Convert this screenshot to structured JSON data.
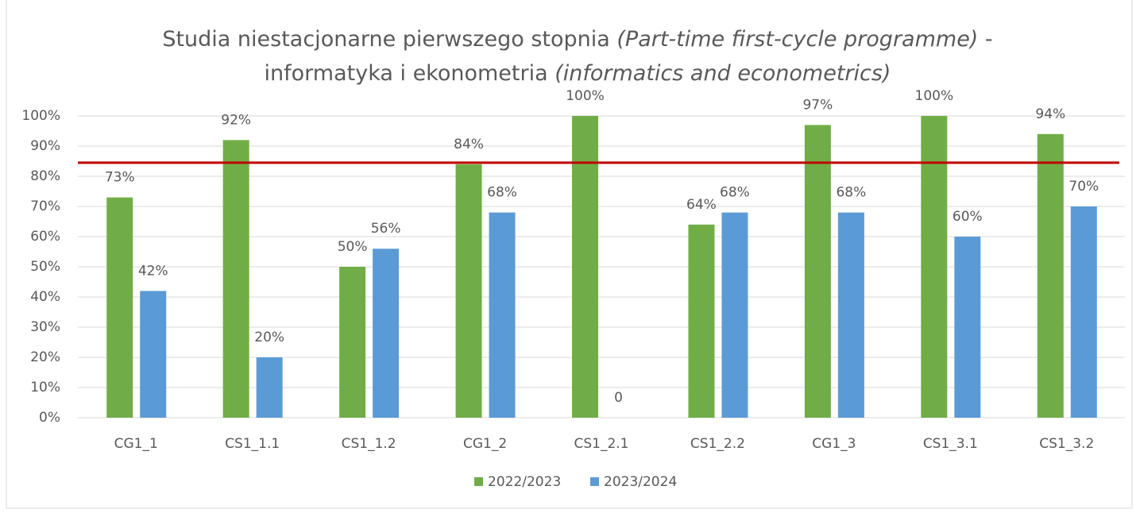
{
  "chart_data": {
    "type": "bar",
    "title": [
      [
        {
          "text": "Studia niestacjonarne pierwszego stopnia ",
          "italic": false
        },
        {
          "text": "(Part-time first-cycle programme)",
          "italic": true
        },
        {
          "text": " -",
          "italic": false
        }
      ],
      [
        {
          "text": "informatyka i ekonometria ",
          "italic": false
        },
        {
          "text": "(informatics and econometrics)",
          "italic": true
        }
      ]
    ],
    "categories": [
      "CG1_1",
      "CS1_1.1",
      "CS1_1.2",
      "CG1_2",
      "CS1_2.1",
      "CS1_2.2",
      "CG1_3",
      "CS1_3.1",
      "CS1_3.2"
    ],
    "series": [
      {
        "name": "2022/2023",
        "color": "#70ad47",
        "values": [
          73,
          92,
          50,
          84,
          100,
          64,
          97,
          100,
          94
        ],
        "value_labels": [
          "73%",
          "92%",
          "50%",
          "84%",
          "100%",
          "64%",
          "97%",
          "100%",
          "94%"
        ]
      },
      {
        "name": "2023/2024",
        "color": "#5b9bd5",
        "values": [
          42,
          20,
          56,
          68,
          0,
          68,
          68,
          60,
          70
        ],
        "value_labels": [
          "42%",
          "20%",
          "56%",
          "68%",
          "0",
          "68%",
          "68%",
          "60%",
          "70%"
        ]
      }
    ],
    "ylim": [
      0,
      100
    ],
    "yticks": [
      {
        "value": 0,
        "label": "0%"
      },
      {
        "value": 10,
        "label": "10%"
      },
      {
        "value": 20,
        "label": "20%"
      },
      {
        "value": 30,
        "label": "30%"
      },
      {
        "value": 40,
        "label": "40%"
      },
      {
        "value": 50,
        "label": "50%"
      },
      {
        "value": 60,
        "label": "60%"
      },
      {
        "value": 70,
        "label": "70%"
      },
      {
        "value": 80,
        "label": "80%"
      },
      {
        "value": 90,
        "label": "90%"
      },
      {
        "value": 100,
        "label": "100%"
      }
    ],
    "grid": true,
    "legend": "bottom",
    "reference_line": {
      "value": 84.5,
      "color": "#c00000"
    }
  }
}
